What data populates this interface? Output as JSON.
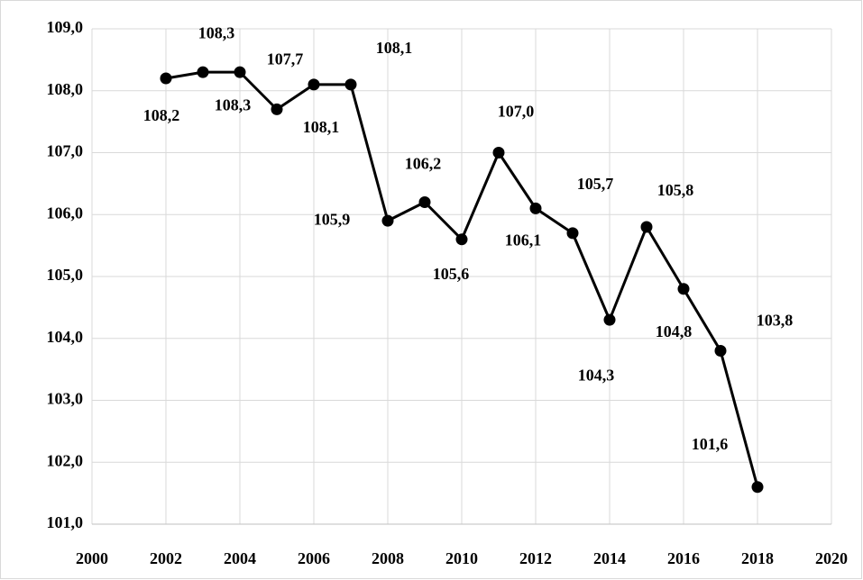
{
  "chart_data": {
    "type": "line",
    "x": [
      2002,
      2003,
      2004,
      2005,
      2006,
      2007,
      2008,
      2009,
      2010,
      2011,
      2012,
      2013,
      2014,
      2015,
      2016,
      2017,
      2018
    ],
    "values": [
      108.2,
      108.3,
      108.3,
      107.7,
      108.1,
      108.1,
      105.9,
      106.2,
      105.6,
      107.0,
      106.1,
      105.7,
      104.3,
      105.8,
      104.8,
      103.8,
      101.6
    ],
    "value_labels": [
      "108,2",
      "108,3",
      "108,3",
      "107,7",
      "108,1",
      "108,1",
      "105,9",
      "106,2",
      "105,6",
      "107,0",
      "106,1",
      "105,7",
      "104,3",
      "105,8",
      "104,8",
      "103,8",
      "101,6"
    ],
    "color": "#000000",
    "xlim": [
      2000,
      2020
    ],
    "xticks": [
      2000,
      2002,
      2004,
      2006,
      2008,
      2010,
      2012,
      2014,
      2016,
      2018,
      2020
    ],
    "ylim": [
      101,
      109
    ],
    "yticks": [
      {
        "value": 101,
        "label": "101,0"
      },
      {
        "value": 102,
        "label": "102,0"
      },
      {
        "value": 103,
        "label": "103,0"
      },
      {
        "value": 104,
        "label": "104,0"
      },
      {
        "value": 105,
        "label": "105,0"
      },
      {
        "value": 106,
        "label": "106,0"
      },
      {
        "value": 107,
        "label": "107,0"
      },
      {
        "value": 108,
        "label": "108,0"
      },
      {
        "value": 109,
        "label": "109,0"
      }
    ],
    "grid": true
  }
}
